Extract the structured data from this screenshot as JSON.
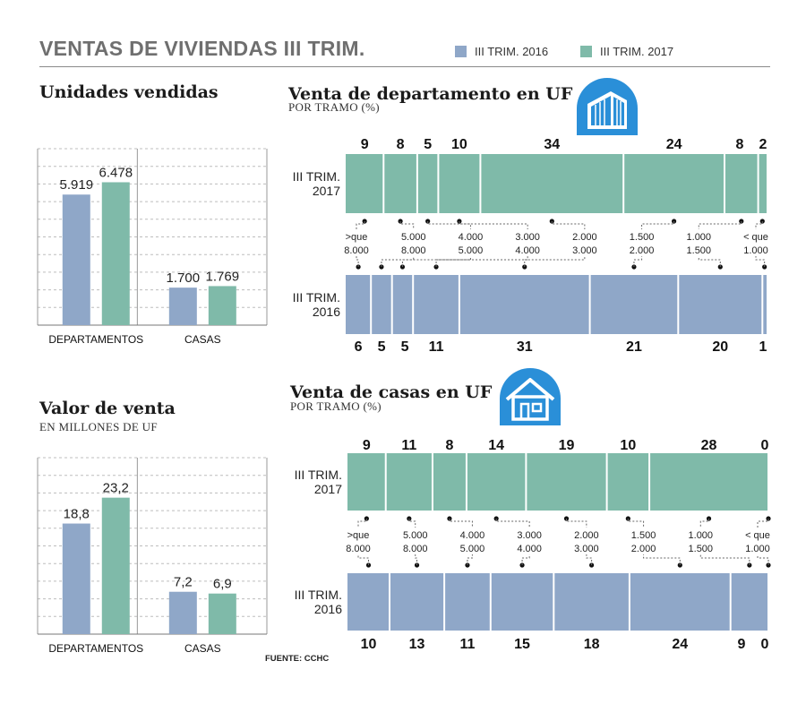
{
  "header": {
    "title": "VENTAS DE VIVIENDAS III TRIM.",
    "legend": [
      {
        "label": "III TRIM. 2016",
        "color": "#8fa7c8"
      },
      {
        "label": "III TRIM. 2017",
        "color": "#7fbaa9"
      }
    ]
  },
  "colors": {
    "y2016": "#8fa7c8",
    "y2017": "#7fbaa9",
    "icon": "#2a8fd8"
  },
  "icons": [
    "building-icon",
    "house-icon"
  ],
  "source": "FUENTE: CCHC",
  "chart_data": [
    {
      "type": "bar",
      "title": "Unidades vendidas",
      "categories": [
        "DEPARTAMENTOS",
        "CASAS"
      ],
      "series": [
        {
          "name": "III TRIM. 2016",
          "values": [
            5919,
            1700
          ],
          "labels": [
            "5.919",
            "1.700"
          ]
        },
        {
          "name": "III TRIM. 2017",
          "values": [
            6478,
            1769
          ],
          "labels": [
            "6.478",
            "1.769"
          ]
        }
      ],
      "ylim": [
        0,
        8000
      ],
      "grid": true
    },
    {
      "type": "bar",
      "title": "Valor de venta",
      "subtitle": "EN MILLONES DE UF",
      "categories": [
        "DEPARTAMENTOS",
        "CASAS"
      ],
      "series": [
        {
          "name": "III TRIM. 2016",
          "values": [
            18.8,
            7.2
          ],
          "labels": [
            "18,8",
            "7,2"
          ]
        },
        {
          "name": "III TRIM. 2017",
          "values": [
            23.2,
            6.9
          ],
          "labels": [
            "23,2",
            "6,9"
          ]
        }
      ],
      "ylim": [
        0,
        30
      ],
      "grid": true
    },
    {
      "type": "bar",
      "title": "Venta de departamento en UF",
      "subtitle": "POR TRAMO (%)",
      "categories": [
        ">que\n8.000",
        "5.000\n8.000",
        "4.000\n5.000",
        "3.000\n4.000",
        "2.000\n3.000",
        "1.500\n2.000",
        "1.000\n1.500",
        "< que\n1.000"
      ],
      "series": [
        {
          "name": "III TRIM.\n2017",
          "values": [
            9,
            8,
            5,
            10,
            34,
            24,
            8,
            2
          ]
        },
        {
          "name": "III TRIM.\n2016",
          "values": [
            6,
            5,
            5,
            11,
            31,
            21,
            20,
            1
          ]
        }
      ]
    },
    {
      "type": "bar",
      "title": "Venta de casas en UF",
      "subtitle": "POR TRAMO (%)",
      "categories": [
        ">que\n8.000",
        "5.000\n8.000",
        "4.000\n5.000",
        "3.000\n4.000",
        "2.000\n3.000",
        "1.500\n2.000",
        "1.000\n1.500",
        "< que\n1.000"
      ],
      "series": [
        {
          "name": "III TRIM.\n2017",
          "values": [
            9,
            11,
            8,
            14,
            19,
            10,
            28,
            0
          ]
        },
        {
          "name": "III TRIM.\n2016",
          "values": [
            10,
            13,
            11,
            15,
            18,
            24,
            9,
            0
          ]
        }
      ]
    }
  ]
}
